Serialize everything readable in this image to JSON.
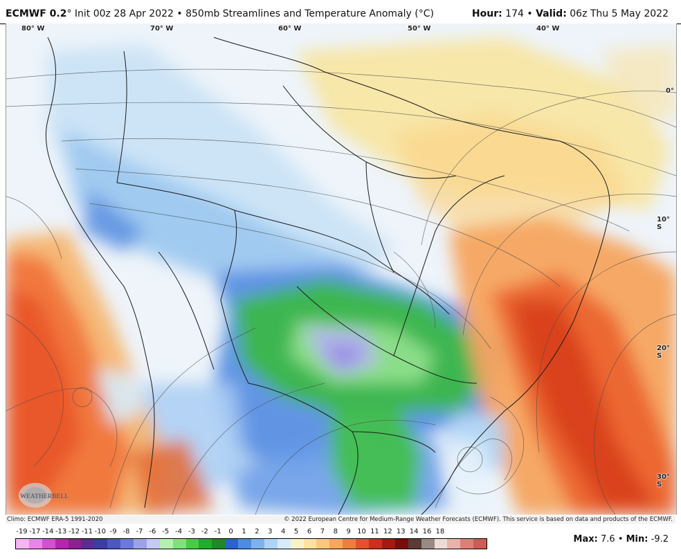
{
  "header": {
    "model": "ECMWF 0.2",
    "degree_symbol": "°",
    "init_text": "Init 00z 28 Apr 2022",
    "separator": "•",
    "product": "850mb Streamlines and Temperature Anomaly (°C)",
    "hour_label": "Hour:",
    "hour_value": "174",
    "valid_label": "Valid:",
    "valid_value": "06z Thu 5 May 2022"
  },
  "map": {
    "longitude_labels": [
      "80° W",
      "70° W",
      "60° W",
      "50° W",
      "40° W"
    ],
    "latitude_labels": [
      "0°",
      "10° S",
      "20° S",
      "30° S"
    ],
    "logo_text": "WEATHERBELL",
    "colors": {
      "ocean_base": "#eef4fa",
      "land_base": "#f2f6f7",
      "border": "#1a1a1a",
      "streamline": "#4a4a4a"
    }
  },
  "footer": {
    "climo": "Climo: ECMWF ERA-5 1991-2020",
    "copyright": "© 2022 European Centre for Medium-Range Weather Forecasts (ECMWF). This service is based on data and products of the ECMWF.",
    "max_label": "Max:",
    "max_value": "7.6",
    "min_label": "Min:",
    "min_value": "-9.2"
  },
  "colorbar": {
    "labels": [
      "-19",
      "-17",
      "-14",
      "-13",
      "-12",
      "-11",
      "-10",
      "-9",
      "-8",
      "-7",
      "-6",
      "-5",
      "-4",
      "-3",
      "-2",
      "-1",
      "0",
      "1",
      "2",
      "3",
      "4",
      "5",
      "6",
      "7",
      "8",
      "9",
      "10",
      "11",
      "12",
      "13",
      "14",
      "16",
      "18"
    ],
    "colors": [
      "#f7b4f2",
      "#ea84e6",
      "#d54fd0",
      "#b824b0",
      "#8f1f93",
      "#5a2c94",
      "#3c3ca7",
      "#4b58c4",
      "#6d78de",
      "#9aa2ec",
      "#c5c9f5",
      "#b5f0b0",
      "#7ee27a",
      "#47cc46",
      "#1fae2b",
      "#1b8a27",
      "#2a63d0",
      "#4e8be5",
      "#7db2ef",
      "#aed4f5",
      "#d7ebfa",
      "#f6f3c8",
      "#fbe39b",
      "#fbc97a",
      "#f7a65a",
      "#f27c3d",
      "#e6512b",
      "#cf2e1e",
      "#a7190f",
      "#7a0c0a",
      "#5b3b36",
      "#9a8a86",
      "#ecdcd6",
      "#e8b3aa",
      "#de7f77",
      "#ce5b55"
    ]
  }
}
